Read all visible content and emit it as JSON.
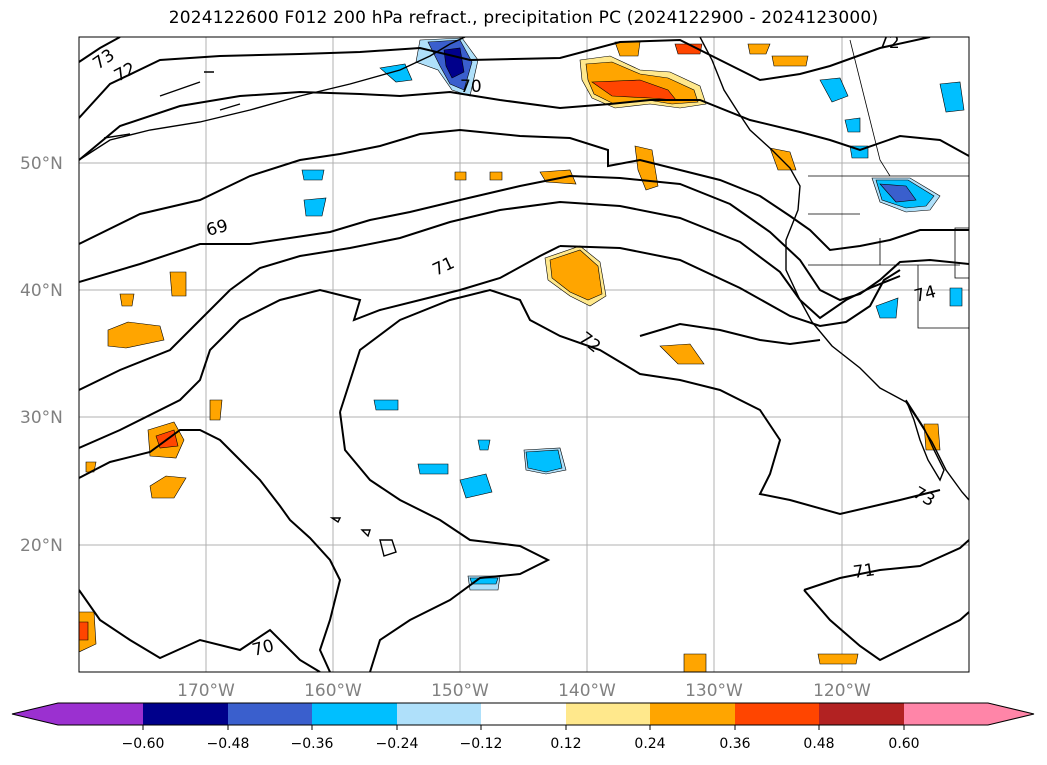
{
  "title": "2024122600 F012 200 hPa refract., precipitation PC (2024122900 - 2024123000)",
  "map": {
    "lat_labels": [
      "50°N",
      "40°N",
      "30°N",
      "20°N"
    ],
    "lon_labels": [
      "170°W",
      "160°W",
      "150°W",
      "140°W",
      "130°W",
      "120°W"
    ],
    "contour_labels": [
      "73",
      "72",
      "70",
      "72",
      "69",
      "71",
      "72",
      "71",
      "74",
      "73",
      "70"
    ],
    "contour_color": "#000000",
    "grid_color": "#b0b0b0"
  },
  "colorbar": {
    "ticks": [
      "−0.60",
      "−0.48",
      "−0.36",
      "−0.24",
      "−0.12",
      "0.12",
      "0.24",
      "0.36",
      "0.48",
      "0.60"
    ],
    "colors": [
      "#9b30d0",
      "#00008b",
      "#3a5fcd",
      "#00bfff",
      "#afe0fa",
      "#ffffff",
      "#ffe88c",
      "#ffa500",
      "#ff4500",
      "#b22222",
      "#ff85a8"
    ],
    "extend": "both"
  }
}
